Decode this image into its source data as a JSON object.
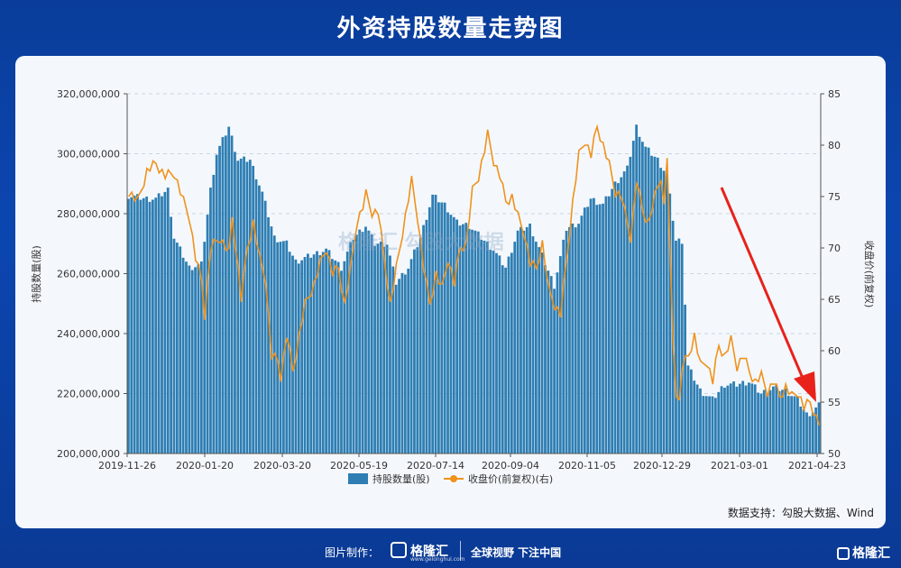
{
  "title": "外资持股数量走势图",
  "watermark": "格隆汇  勾股大数据",
  "source": "数据支持：勾股大数据、Wind",
  "footer": {
    "made_by": "图片制作：",
    "logo_name": "格隆汇",
    "logo_url": "www.gelonghui.com",
    "slogan": "全球视野 下注中国",
    "corner_logo": "格隆汇"
  },
  "colors": {
    "bar": "#2e7eb3",
    "line": "#f0921c",
    "arrow": "#e8221b",
    "bg": "#0b46b0"
  },
  "chart_data": {
    "type": "bar",
    "xlabel": "",
    "ylabel": "持股数量(股)",
    "ylabel_right": "收盘价(前复权)",
    "ylim": [
      200000000,
      320000000
    ],
    "ylim_right": [
      50,
      85
    ],
    "yticks": [
      "200,000,000",
      "220,000,000",
      "240,000,000",
      "260,000,000",
      "280,000,000",
      "300,000,000",
      "320,000,000"
    ],
    "yticks_right": [
      "50",
      "55",
      "60",
      "65",
      "70",
      "75",
      "80",
      "85"
    ],
    "xticks": [
      "2019-11-26",
      "2020-01-20",
      "2020-03-20",
      "2020-05-19",
      "2020-07-14",
      "2020-09-04",
      "2020-11-05",
      "2020-12-29",
      "2021-03-01",
      "2021-04-23"
    ],
    "grid": true,
    "legend_position": "bottom",
    "series": [
      {
        "name": "持股数量(股)",
        "type": "bar",
        "anchors": [
          [
            0,
            286
          ],
          [
            6,
            285
          ],
          [
            9,
            285
          ],
          [
            13,
            288
          ],
          [
            15,
            272
          ],
          [
            20,
            262
          ],
          [
            24,
            263
          ],
          [
            27,
            288
          ],
          [
            29,
            300
          ],
          [
            33,
            309
          ],
          [
            36,
            298
          ],
          [
            40,
            298
          ],
          [
            44,
            287
          ],
          [
            48,
            272
          ],
          [
            52,
            270
          ],
          [
            55,
            264
          ],
          [
            60,
            266
          ],
          [
            65,
            268
          ],
          [
            70,
            262
          ],
          [
            74,
            272
          ],
          [
            78,
            276
          ],
          [
            81,
            270
          ],
          [
            85,
            270
          ],
          [
            88,
            257
          ],
          [
            92,
            262
          ],
          [
            96,
            272
          ],
          [
            100,
            286
          ],
          [
            104,
            283
          ],
          [
            108,
            277
          ],
          [
            112,
            276
          ],
          [
            116,
            272
          ],
          [
            120,
            268
          ],
          [
            124,
            262
          ],
          [
            128,
            274
          ],
          [
            132,
            276
          ],
          [
            136,
            266
          ],
          [
            140,
            256
          ],
          [
            144,
            275
          ],
          [
            148,
            277
          ],
          [
            152,
            285
          ],
          [
            156,
            283
          ],
          [
            160,
            290
          ],
          [
            164,
            295
          ],
          [
            167,
            309
          ],
          [
            170,
            302
          ],
          [
            174,
            298
          ],
          [
            177,
            293
          ],
          [
            180,
            271
          ],
          [
            182,
            271
          ],
          [
            184,
            229
          ],
          [
            188,
            221
          ],
          [
            192,
            218
          ],
          [
            196,
            223
          ],
          [
            200,
            223
          ],
          [
            204,
            224
          ],
          [
            208,
            220
          ],
          [
            212,
            222
          ],
          [
            216,
            221
          ],
          [
            220,
            218
          ],
          [
            223,
            213
          ],
          [
            225,
            214
          ],
          [
            227,
            216
          ]
        ]
      },
      {
        "name": "收盘价(前复权)(右)",
        "type": "line",
        "anchors": [
          [
            0,
            75.5
          ],
          [
            3,
            74.5
          ],
          [
            6,
            77.5
          ],
          [
            9,
            78.2
          ],
          [
            12,
            77.0
          ],
          [
            15,
            77.3
          ],
          [
            18,
            74.5
          ],
          [
            20,
            73.0
          ],
          [
            22,
            69.0
          ],
          [
            24,
            66.8
          ],
          [
            25,
            63.5
          ],
          [
            27,
            70.0
          ],
          [
            30,
            71.0
          ],
          [
            33,
            69.5
          ],
          [
            34,
            73.0
          ],
          [
            36,
            68.0
          ],
          [
            37,
            65.0
          ],
          [
            39,
            70.0
          ],
          [
            41,
            72.5
          ],
          [
            43,
            69.0
          ],
          [
            45,
            67.0
          ],
          [
            47,
            59.5
          ],
          [
            49,
            59.0
          ],
          [
            50,
            57.5
          ],
          [
            52,
            61.5
          ],
          [
            54,
            58.0
          ],
          [
            56,
            61.5
          ],
          [
            58,
            64.5
          ],
          [
            61,
            66.5
          ],
          [
            63,
            68.5
          ],
          [
            65,
            70.0
          ],
          [
            67,
            67.5
          ],
          [
            69,
            68.0
          ],
          [
            71,
            64.5
          ],
          [
            73,
            68.0
          ],
          [
            75,
            72.5
          ],
          [
            77,
            74.0
          ],
          [
            78,
            75.2
          ],
          [
            80,
            73.5
          ],
          [
            82,
            73.5
          ],
          [
            84,
            69.0
          ],
          [
            86,
            64.5
          ],
          [
            88,
            68.0
          ],
          [
            90,
            71.5
          ],
          [
            92,
            74.8
          ],
          [
            93,
            76.5
          ],
          [
            95,
            73.0
          ],
          [
            97,
            68.0
          ],
          [
            99,
            64.5
          ],
          [
            101,
            67.5
          ],
          [
            103,
            66.0
          ],
          [
            105,
            69.0
          ],
          [
            107,
            66.5
          ],
          [
            109,
            70.0
          ],
          [
            111,
            70.5
          ],
          [
            113,
            75.5
          ],
          [
            115,
            77.0
          ],
          [
            117,
            79.5
          ],
          [
            118,
            81.0
          ],
          [
            120,
            78.5
          ],
          [
            122,
            77.0
          ],
          [
            124,
            74.5
          ],
          [
            126,
            75.0
          ],
          [
            128,
            73.0
          ],
          [
            130,
            71.5
          ],
          [
            132,
            68.5
          ],
          [
            134,
            68.0
          ],
          [
            136,
            70.5
          ],
          [
            138,
            66.0
          ],
          [
            140,
            64.5
          ],
          [
            142,
            63.5
          ],
          [
            144,
            69.0
          ],
          [
            146,
            74.5
          ],
          [
            148,
            79.0
          ],
          [
            150,
            80.5
          ],
          [
            152,
            79.0
          ],
          [
            154,
            81.8
          ],
          [
            156,
            80.0
          ],
          [
            158,
            78.0
          ],
          [
            160,
            75.5
          ],
          [
            162,
            75.0
          ],
          [
            163,
            73.5
          ],
          [
            165,
            71.0
          ],
          [
            167,
            76.5
          ],
          [
            169,
            73.5
          ],
          [
            171,
            72.5
          ],
          [
            173,
            75.0
          ],
          [
            175,
            77.0
          ],
          [
            176,
            74.0
          ],
          [
            177,
            79.0
          ],
          [
            178,
            69.0
          ],
          [
            179,
            60.5
          ],
          [
            180,
            56.0
          ],
          [
            181,
            55.0
          ],
          [
            182,
            58.5
          ],
          [
            184,
            59.5
          ],
          [
            186,
            61.5
          ],
          [
            188,
            58.5
          ],
          [
            190,
            59.0
          ],
          [
            192,
            57.0
          ],
          [
            194,
            60.5
          ],
          [
            196,
            59.5
          ],
          [
            198,
            61.0
          ],
          [
            200,
            58.5
          ],
          [
            202,
            59.5
          ],
          [
            204,
            58.0
          ],
          [
            206,
            57.0
          ],
          [
            208,
            57.5
          ],
          [
            210,
            56.0
          ],
          [
            212,
            57.0
          ],
          [
            214,
            55.5
          ],
          [
            216,
            56.5
          ],
          [
            218,
            55.5
          ],
          [
            220,
            56.0
          ],
          [
            222,
            54.5
          ],
          [
            224,
            55.0
          ],
          [
            226,
            53.5
          ],
          [
            227,
            53.0
          ]
        ]
      }
    ],
    "bar_count": 228,
    "arrow": true
  }
}
